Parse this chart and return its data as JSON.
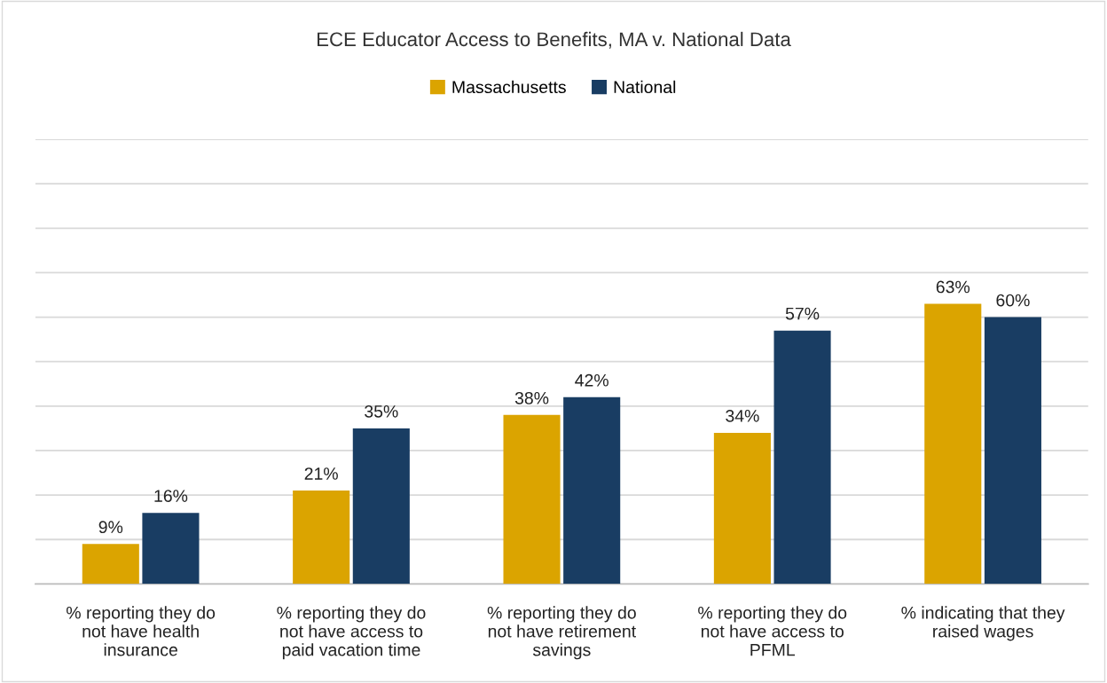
{
  "chart_data": {
    "type": "bar",
    "title": "ECE Educator Access to Benefits, MA v. National Data",
    "categories": [
      "% reporting they do not have health insurance",
      "% reporting they do not have access to paid vacation time",
      "% reporting they do not have retirement savings",
      "% reporting they do not have access to PFML",
      "% indicating that they raised wages"
    ],
    "series": [
      {
        "name": "Massachusetts",
        "color": "#dba400",
        "values": [
          9,
          21,
          38,
          34,
          63
        ],
        "value_labels": [
          "9%",
          "21%",
          "38%",
          "34%",
          "63%"
        ]
      },
      {
        "name": "National",
        "color": "#193d63",
        "values": [
          16,
          35,
          42,
          57,
          60
        ],
        "value_labels": [
          "16%",
          "35%",
          "42%",
          "57%",
          "60%"
        ]
      }
    ],
    "ylim": [
      0,
      100
    ],
    "yticks": [
      {
        "value": 0,
        "label": null
      },
      {
        "value": 10,
        "label": null
      },
      {
        "value": 20,
        "label": null
      },
      {
        "value": 30,
        "label": null
      },
      {
        "value": 40,
        "label": null
      },
      {
        "value": 50,
        "label": null
      },
      {
        "value": 60,
        "label": null
      },
      {
        "value": 70,
        "label": null
      },
      {
        "value": 80,
        "label": null
      },
      {
        "value": 90,
        "label": null
      },
      {
        "value": 100,
        "label": null
      }
    ],
    "grid": "y",
    "legend": "top",
    "tick_labels": "x"
  }
}
